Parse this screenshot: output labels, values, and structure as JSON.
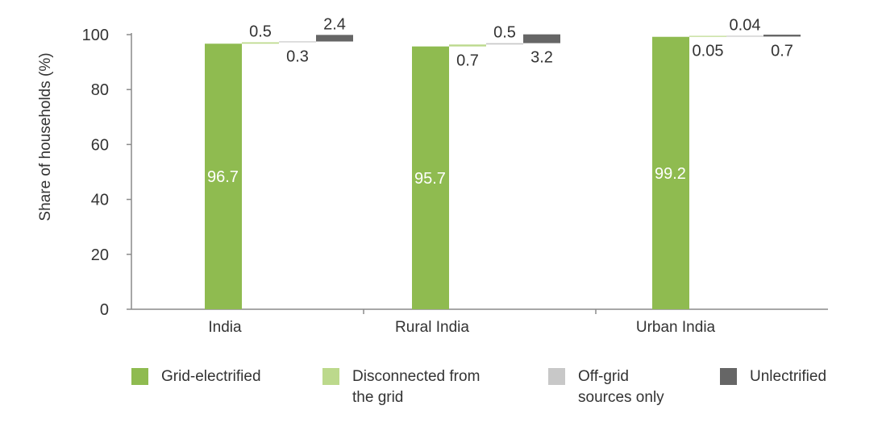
{
  "chart_data": {
    "type": "bar",
    "ylabel": "Share of households (%)",
    "xlabel": "",
    "ylim": [
      0,
      100
    ],
    "yticks": [
      0,
      20,
      40,
      60,
      80,
      100
    ],
    "categories": [
      "India",
      "Rural India",
      "Urban India"
    ],
    "series": [
      {
        "name": "Grid-electrified",
        "color": "#8fbb50",
        "values": [
          96.7,
          95.7,
          99.2
        ],
        "labels": [
          "96.7",
          "95.7",
          "99.2"
        ]
      },
      {
        "name": "Disconnected from the grid",
        "color": "#bcd98c",
        "values": [
          0.5,
          0.7,
          0.05
        ],
        "labels": [
          "0.5",
          "0.7",
          "0.05"
        ]
      },
      {
        "name": "Off-grid sources only",
        "color": "#c8c8c8",
        "values": [
          0.3,
          0.5,
          0.04
        ],
        "labels": [
          "0.3",
          "0.5",
          "0.04"
        ]
      },
      {
        "name": "Unlectrified",
        "color": "#666666",
        "values": [
          2.4,
          3.2,
          0.7
        ],
        "labels": [
          "2.4",
          "3.2",
          "0.7"
        ]
      }
    ],
    "legend_position": "bottom",
    "grid": false
  },
  "legend": {
    "items": [
      {
        "label": "Grid-electrified",
        "color": "#8fbb50"
      },
      {
        "label": "Disconnected from\nthe grid",
        "color": "#bcd98c"
      },
      {
        "label": "Off-grid\nsources only",
        "color": "#c8c8c8"
      },
      {
        "label": "Unlectrified",
        "color": "#666666"
      }
    ]
  }
}
